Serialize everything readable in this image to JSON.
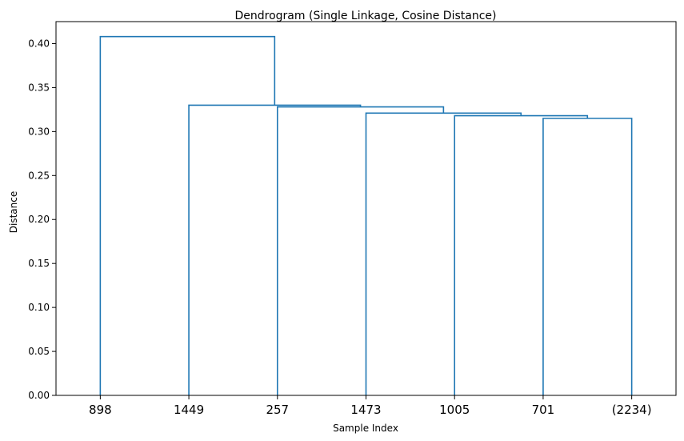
{
  "chart_data": {
    "type": "dendrogram",
    "title": "Dendrogram (Single Linkage, Cosine Distance)",
    "xlabel": "Sample Index",
    "ylabel": "Distance",
    "ylim": [
      0,
      0.425
    ],
    "yticks": [
      0.0,
      0.05,
      0.1,
      0.15,
      0.2,
      0.25,
      0.3,
      0.35,
      0.4
    ],
    "ytick_labels": [
      "0.00",
      "0.05",
      "0.10",
      "0.15",
      "0.20",
      "0.25",
      "0.30",
      "0.35",
      "0.40"
    ],
    "leaves": [
      "898",
      "1449",
      "257",
      "1473",
      "1005",
      "701",
      "(2234)"
    ],
    "link_color": "#1f77b4",
    "merges": [
      {
        "left": 5,
        "right": 6,
        "height": 0.315
      },
      {
        "left": 4,
        "right": 7,
        "height": 0.318
      },
      {
        "left": 3,
        "right": 8,
        "height": 0.321
      },
      {
        "left": 2,
        "right": 9,
        "height": 0.328
      },
      {
        "left": 1,
        "right": 10,
        "height": 0.33
      },
      {
        "left": 0,
        "right": 11,
        "height": 0.408
      }
    ]
  }
}
